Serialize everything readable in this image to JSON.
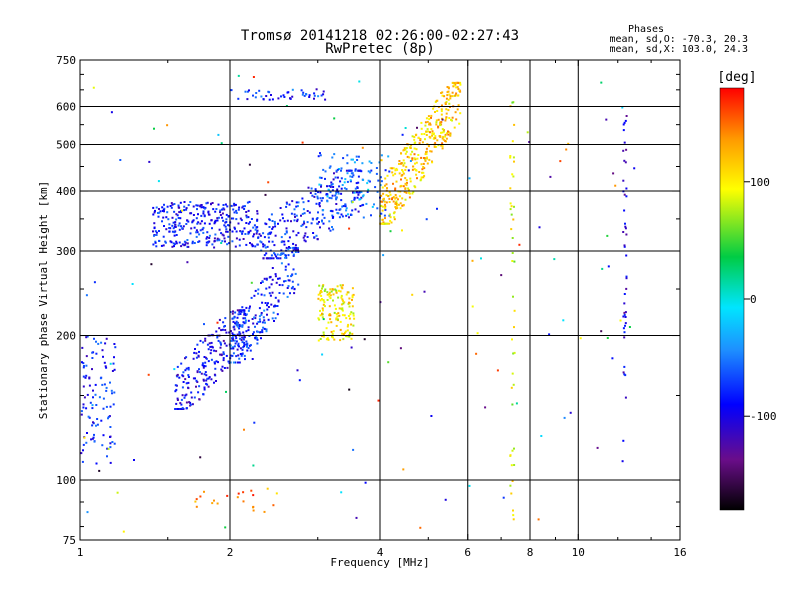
{
  "chart_data": {
    "type": "scatter",
    "title": "Tromsø 20141218 02:26:00-02:27:43",
    "subtitle": "RwPretec (8p)",
    "xlabel": "Frequency [MHz]",
    "ylabel": "Stationary phase Virtual Height [km]",
    "x_scale": "log",
    "y_scale": "log",
    "xlim": [
      1,
      16
    ],
    "ylim": [
      75,
      750
    ],
    "x_ticks": [
      1,
      2,
      4,
      6,
      8,
      10,
      16
    ],
    "y_ticks": [
      75,
      100,
      200,
      300,
      400,
      500,
      600,
      750
    ],
    "grid_x": [
      2,
      4,
      6,
      8,
      10
    ],
    "grid_y": [
      100,
      200,
      300,
      400,
      500,
      600
    ],
    "grid": true,
    "phase_info": {
      "title": "Phases",
      "line_o": "mean, sd,O: -70.3, 20.3",
      "line_x": "mean, sd,X: 103.0, 24.3"
    },
    "colorbar": {
      "label": "[deg]",
      "range": [
        -180,
        180
      ],
      "ticks": [
        100,
        0,
        -100
      ],
      "colormap": [
        "#000000",
        "#6a0d8a",
        "#0000ff",
        "#1e90ff",
        "#00e5ff",
        "#00cc44",
        "#ffff00",
        "#ff9900",
        "#ff0000"
      ]
    },
    "clusters": [
      {
        "name": "O-trace lower-left",
        "x": [
          1.0,
          1.18
        ],
        "y": [
          108,
          200
        ],
        "phase": -85,
        "n": 110
      },
      {
        "name": "O-trace E-F1",
        "x": [
          1.55,
          2.15
        ],
        "y": [
          148,
          215
        ],
        "phase": -95,
        "n": 230
      },
      {
        "name": "O-trace F1 ramp",
        "x": [
          2.0,
          2.75
        ],
        "y": [
          185,
          290
        ],
        "phase": -75,
        "n": 230
      },
      {
        "name": "O-trace F2 base",
        "x": [
          1.4,
          2.3
        ],
        "y": [
          305,
          380
        ],
        "phase": -85,
        "n": 330
      },
      {
        "name": "O-trace F2 rise",
        "x": [
          2.3,
          3.7
        ],
        "y": [
          305,
          420
        ],
        "phase": -82,
        "n": 260
      },
      {
        "name": "O-trace F2 upper",
        "x": [
          3.0,
          4.2
        ],
        "y": [
          350,
          480
        ],
        "phase": -50,
        "n": 110
      },
      {
        "name": "X-trace F1",
        "x": [
          3.0,
          3.55
        ],
        "y": [
          195,
          255
        ],
        "phase": 100,
        "n": 150
      },
      {
        "name": "X-trace F2 cusp",
        "x": [
          4.0,
          5.8
        ],
        "y": [
          360,
          640
        ],
        "phase": 115,
        "n": 380
      },
      {
        "name": "Top echo",
        "x": [
          2.0,
          3.2
        ],
        "y": [
          620,
          650
        ],
        "phase": -75,
        "n": 45
      },
      {
        "name": "E-region echo",
        "x": [
          1.7,
          2.5
        ],
        "y": [
          85,
          97
        ],
        "phase": 140,
        "n": 22
      },
      {
        "name": "Interference 7.5 MHz",
        "x": [
          7.3,
          7.45
        ],
        "y": [
          80,
          620
        ],
        "phase": 90,
        "n": 45
      },
      {
        "name": "Interference 12.4 MHz",
        "x": [
          12.3,
          12.5
        ],
        "y": [
          120,
          580
        ],
        "phase": -100,
        "n": 45
      },
      {
        "name": "Scattered noise",
        "x": [
          1.0,
          13.0
        ],
        "y": [
          78,
          700
        ],
        "phase": 0,
        "n": 130
      }
    ]
  }
}
